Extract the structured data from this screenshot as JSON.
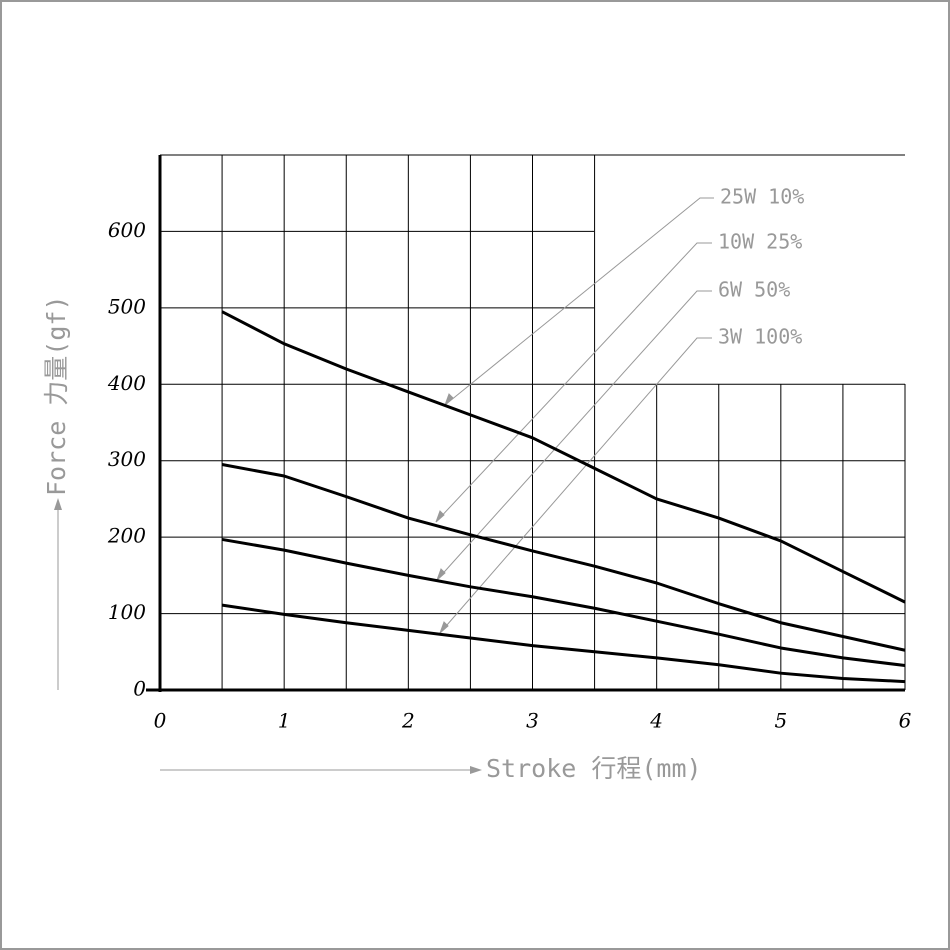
{
  "chart_data": {
    "type": "line",
    "y_label": "Force 力量(gf)",
    "x_label": "Stroke 行程(mm)",
    "x": [
      0.5,
      1,
      1.5,
      2,
      2.5,
      3,
      3.5,
      4,
      4.5,
      5,
      5.5,
      6
    ],
    "series": [
      {
        "name": "25W 10%",
        "color": "#000000",
        "values": [
          495,
          453,
          420,
          390,
          360,
          330,
          290,
          250,
          225,
          195,
          155,
          115
        ]
      },
      {
        "name": "10W 25%",
        "color": "#000000",
        "values": [
          295,
          280,
          253,
          225,
          203,
          182,
          162,
          140,
          113,
          88,
          70,
          52
        ]
      },
      {
        "name": "6W 50%",
        "color": "#000000",
        "values": [
          197,
          183,
          166,
          150,
          135,
          122,
          107,
          90,
          73,
          55,
          42,
          32
        ]
      },
      {
        "name": "3W 100%",
        "color": "#000000",
        "values": [
          111,
          99,
          88,
          78,
          68,
          58,
          50,
          42,
          33,
          22,
          15,
          11
        ]
      }
    ],
    "xlim": [
      0,
      6
    ],
    "ylim": [
      0,
      700
    ],
    "xticks": [
      0,
      1,
      2,
      3,
      4,
      5,
      6
    ],
    "yticks": [
      0,
      100,
      200,
      300,
      400,
      500,
      600
    ],
    "grid": true
  }
}
